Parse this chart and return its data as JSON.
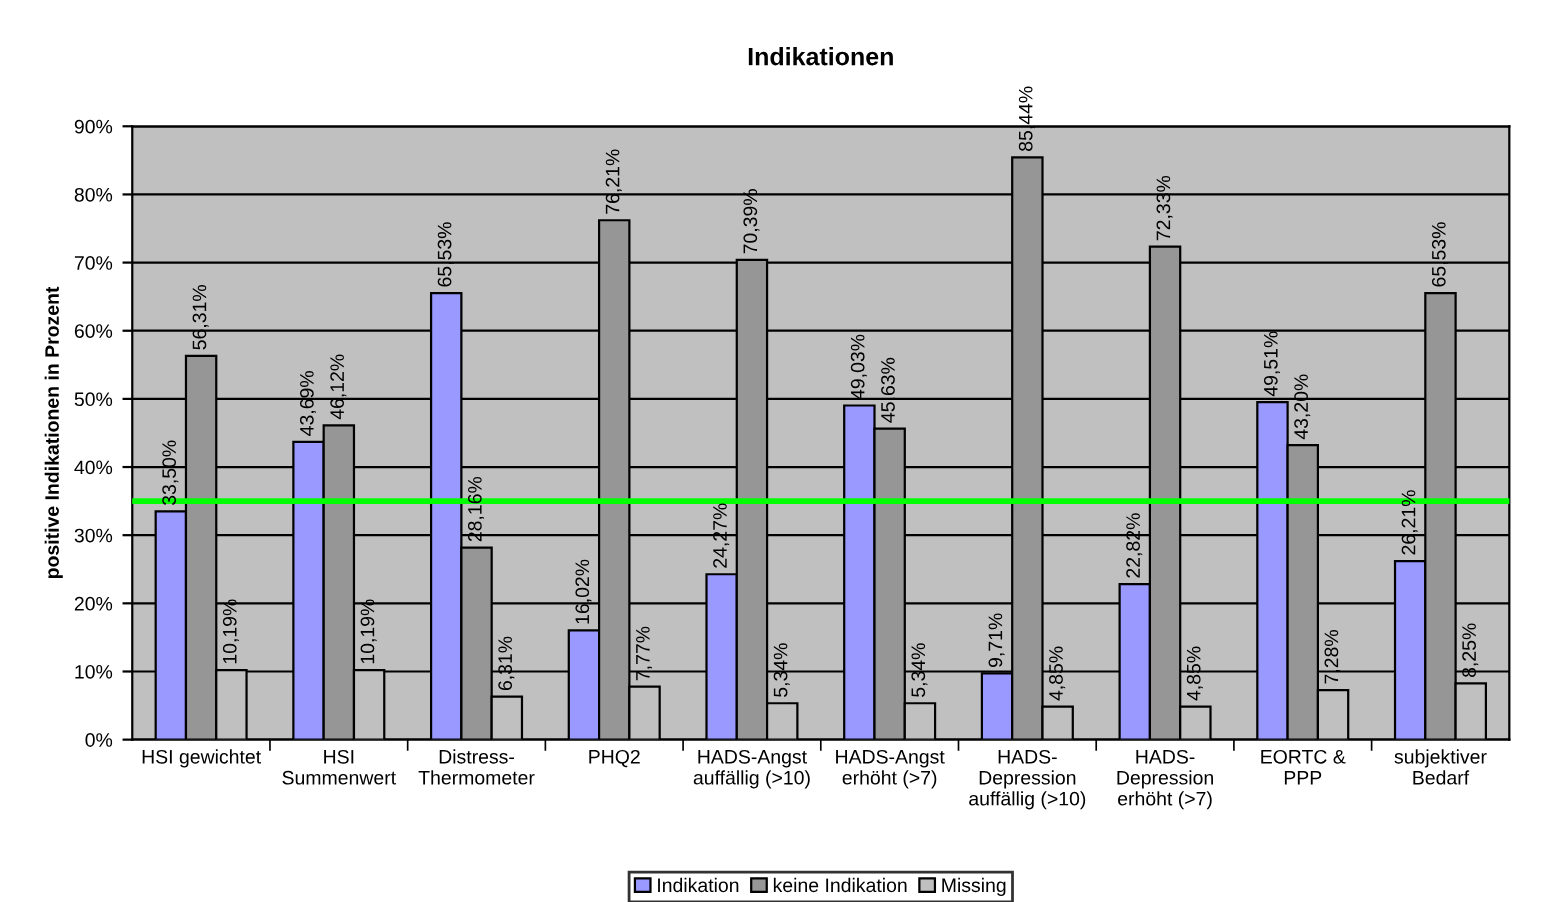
{
  "chart_data": {
    "type": "bar",
    "title": "Indikationen",
    "ylabel": "positive Indikationen in Prozent",
    "categories": [
      "HSI gewichtet",
      "HSI\nSummenwert",
      "Distress-\nThermometer",
      "PHQ2",
      "HADS-Angst\nauffällig (>10)",
      "HADS-Angst\nerhöht (>7)",
      "HADS-\nDepression\nauffällig (>10)",
      "HADS-\nDepression\nerhöht (>7)",
      "EORTC &\nPPP",
      "subjektiver\nBedarf"
    ],
    "series": [
      {
        "name": "Indikation",
        "color": "#9999ff",
        "values": [
          33.5,
          43.69,
          65.53,
          16.02,
          24.27,
          49.03,
          9.71,
          22.82,
          49.51,
          26.21
        ],
        "value_labels": [
          "33,50%",
          "43,69%",
          "65,53%",
          "16,02%",
          "24,27%",
          "49,03%",
          "9,71%",
          "22,82%",
          "49,51%",
          "26,21%"
        ]
      },
      {
        "name": "keine Indikation",
        "color": "#969696",
        "values": [
          56.31,
          46.12,
          28.16,
          76.21,
          70.39,
          45.63,
          85.44,
          72.33,
          43.2,
          65.53
        ],
        "value_labels": [
          "56,31%",
          "46,12%",
          "28,16%",
          "76,21%",
          "70,39%",
          "45,63%",
          "85,44%",
          "72,33%",
          "43,20%",
          "65,53%"
        ]
      },
      {
        "name": "Missing",
        "color": "#c0c0c0",
        "values": [
          10.19,
          10.19,
          6.31,
          7.77,
          5.34,
          5.34,
          4.85,
          4.85,
          7.28,
          8.25
        ],
        "value_labels": [
          "10,19%",
          "10,19%",
          "6,31%",
          "7,77%",
          "5,34%",
          "5,34%",
          "4,85%",
          "4,85%",
          "7,28%",
          "8,25%"
        ]
      }
    ],
    "ylim": [
      0,
      90
    ],
    "yticks": [
      {
        "value": 0,
        "label": "0%"
      },
      {
        "value": 10,
        "label": "10%"
      },
      {
        "value": 20,
        "label": "20%"
      },
      {
        "value": 30,
        "label": "30%"
      },
      {
        "value": 40,
        "label": "40%"
      },
      {
        "value": 50,
        "label": "50%"
      },
      {
        "value": 60,
        "label": "60%"
      },
      {
        "value": 70,
        "label": "70%"
      },
      {
        "value": 80,
        "label": "80%"
      },
      {
        "value": 90,
        "label": "90%"
      }
    ],
    "grid": "y",
    "legend": "bottom",
    "ref_lines": [
      {
        "axis": "y",
        "value": 35,
        "color": "#00ff00",
        "line_style": "solid"
      }
    ]
  }
}
